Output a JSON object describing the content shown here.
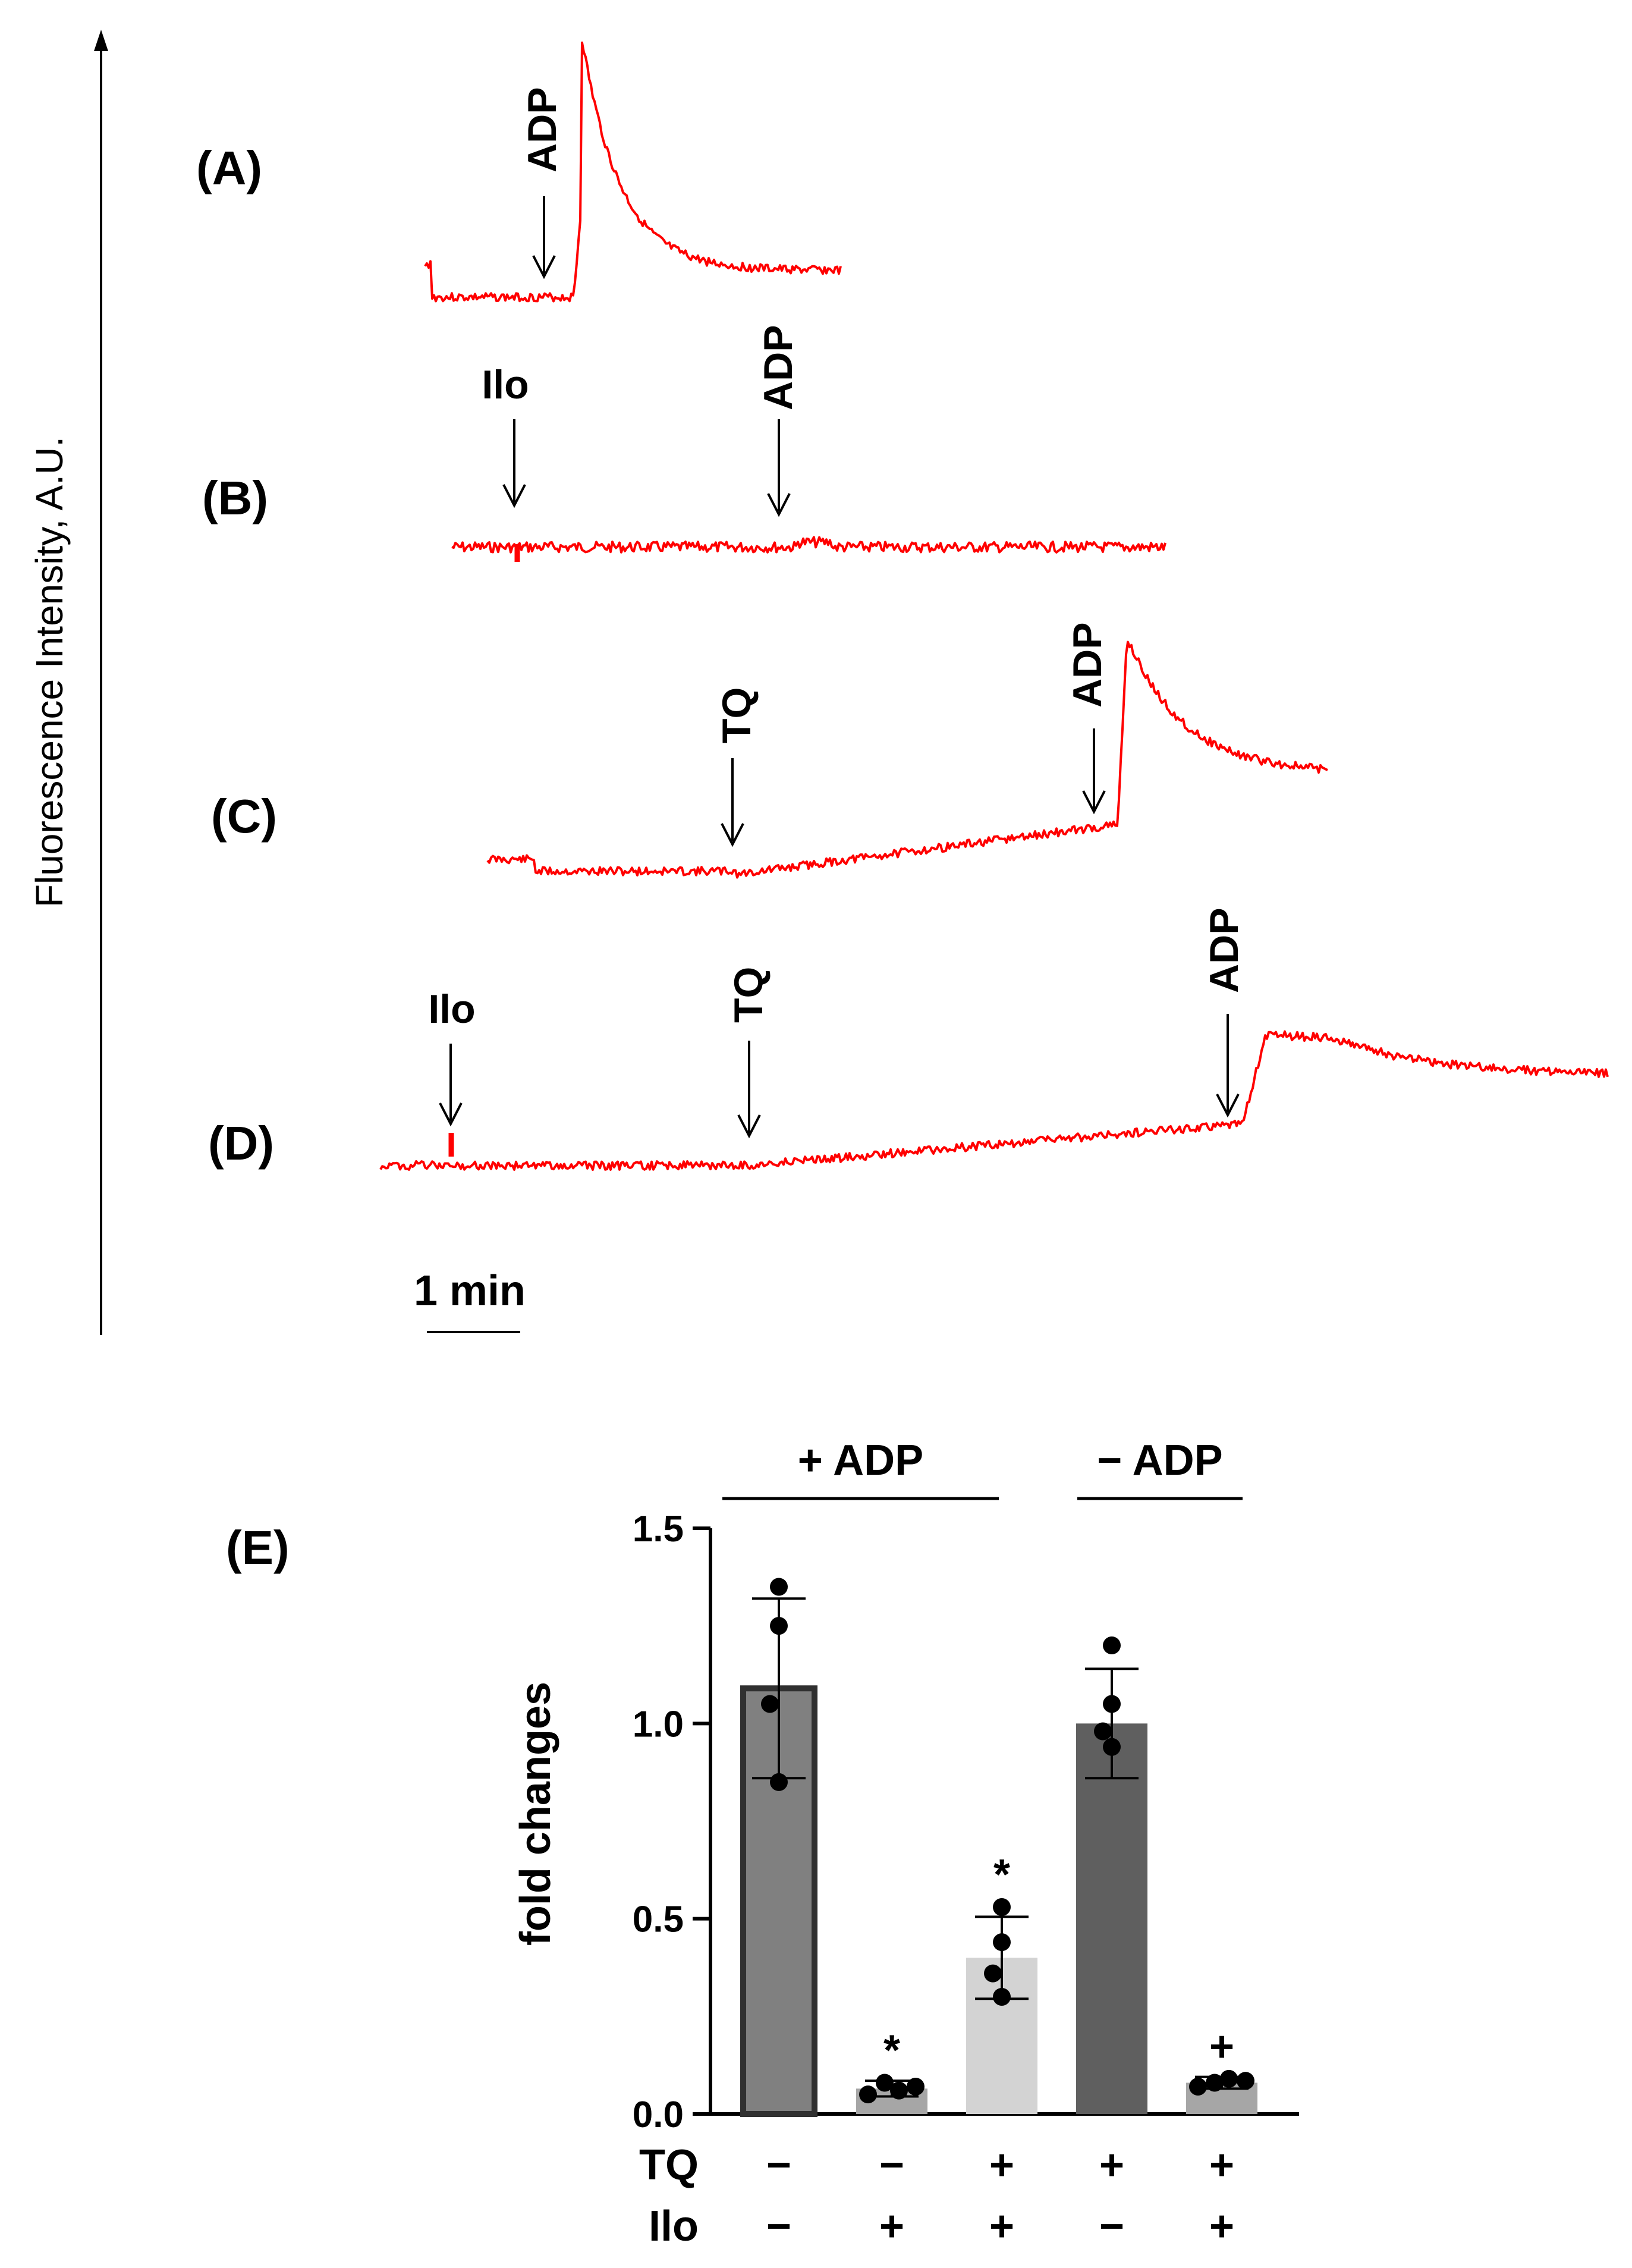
{
  "figure": {
    "y_axis_label": "Fluorescence Intensity, A.U.",
    "scale_bar_label": "1 min"
  },
  "traces": [
    {
      "id": "A",
      "label": "(A)",
      "events": [
        {
          "label": "ADP"
        }
      ],
      "kind": "spike_decay"
    },
    {
      "id": "B",
      "label": "(B)",
      "events": [
        {
          "label": "Ilo"
        },
        {
          "label": "ADP"
        }
      ],
      "kind": "flat"
    },
    {
      "id": "C",
      "label": "(C)",
      "events": [
        {
          "label": "TQ"
        },
        {
          "label": "ADP"
        }
      ],
      "kind": "rise_spike_decay"
    },
    {
      "id": "D",
      "label": "(D)",
      "events": [
        {
          "label": "Ilo"
        },
        {
          "label": "TQ"
        },
        {
          "label": "ADP"
        }
      ],
      "kind": "slow_rise_plateau"
    }
  ],
  "chart_data": {
    "type": "bar",
    "panel_label": "(E)",
    "ylabel": "fold changes",
    "ylim": [
      0,
      1.5
    ],
    "yticks": [
      "0.0",
      "0.5",
      "1.0",
      "1.5"
    ],
    "groups": [
      {
        "label": "+ ADP",
        "bars": [
          0,
          1,
          2
        ]
      },
      {
        "label": "− ADP",
        "bars": [
          3,
          4
        ]
      }
    ],
    "row_labels": [
      "TQ",
      "Ilo"
    ],
    "bars": [
      {
        "TQ": "−",
        "Ilo": "−",
        "value": 1.09,
        "error": 0.23,
        "color": "#808080",
        "outline": true,
        "marker": "",
        "points": [
          1.35,
          1.25,
          1.05,
          0.85
        ]
      },
      {
        "TQ": "−",
        "Ilo": "+",
        "value": 0.065,
        "error": 0.02,
        "color": "#a6a6a6",
        "outline": false,
        "marker": "*",
        "points": [
          0.05,
          0.08,
          0.06,
          0.07
        ]
      },
      {
        "TQ": "+",
        "Ilo": "+",
        "value": 0.4,
        "error": 0.105,
        "color": "#d3d3d3",
        "outline": false,
        "marker": "*",
        "points": [
          0.53,
          0.44,
          0.36,
          0.3
        ]
      },
      {
        "TQ": "+",
        "Ilo": "−",
        "value": 1.0,
        "error": 0.14,
        "color": "#5f5f5f",
        "outline": false,
        "marker": "",
        "points": [
          1.2,
          1.05,
          0.98,
          0.94
        ]
      },
      {
        "TQ": "+",
        "Ilo": "+",
        "value": 0.08,
        "error": 0.015,
        "color": "#a6a6a6",
        "outline": false,
        "marker": "+",
        "points": [
          0.07,
          0.08,
          0.09,
          0.085
        ]
      }
    ]
  }
}
